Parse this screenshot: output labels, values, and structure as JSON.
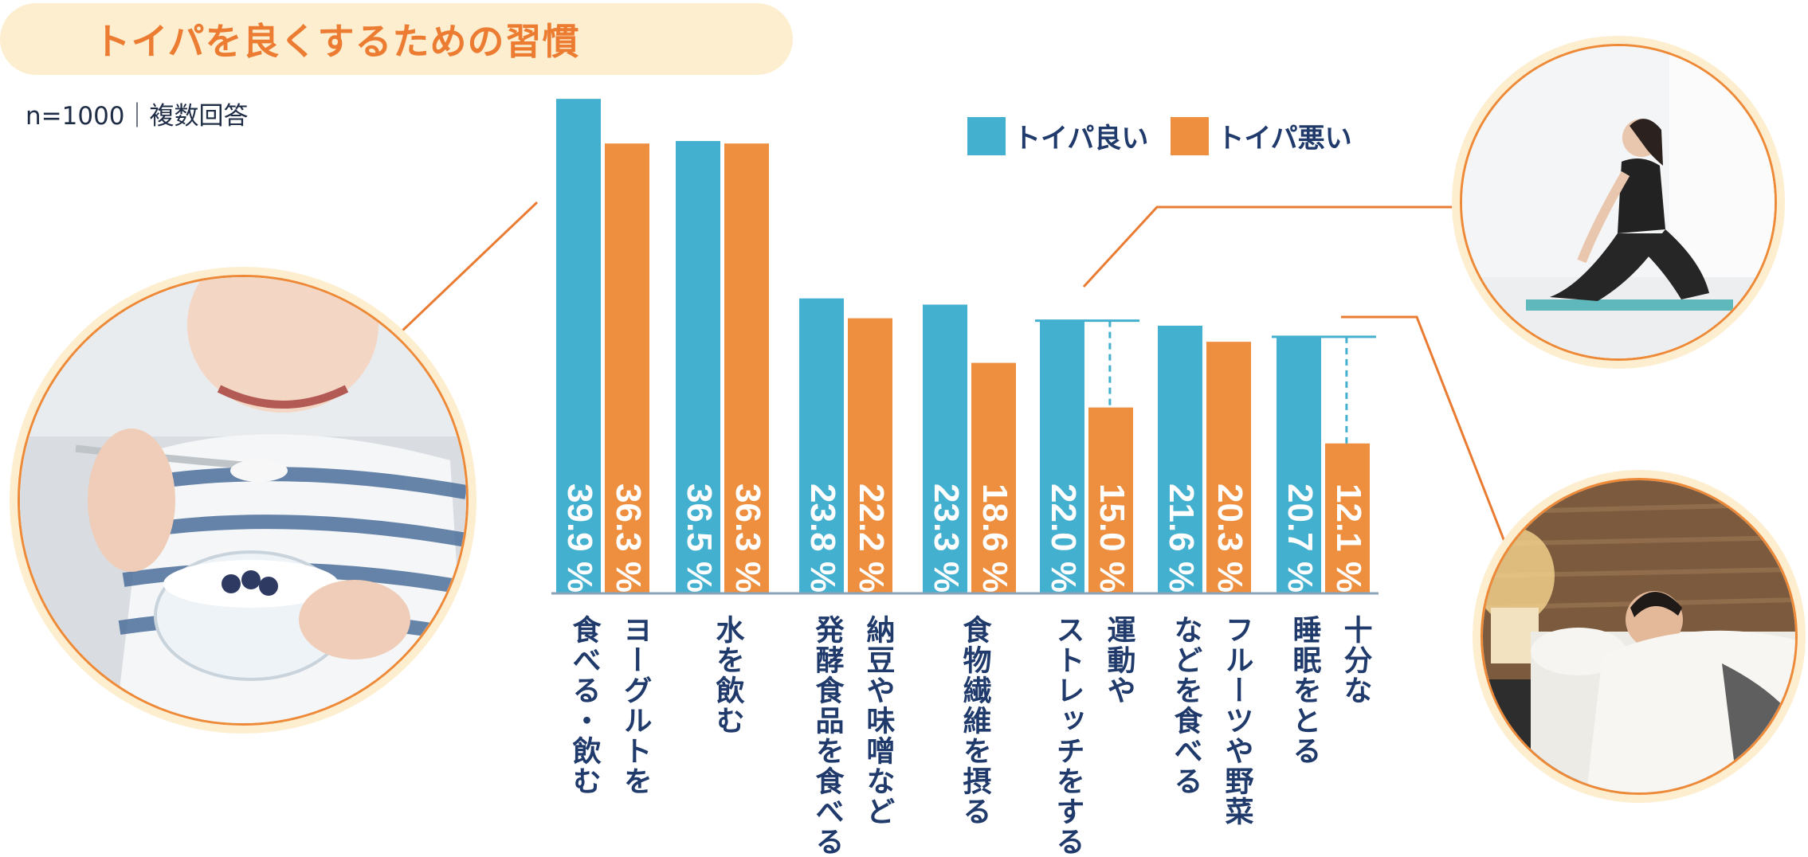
{
  "title": "トイパを良くするための習慣",
  "sample_note": "n=1000｜複数回答",
  "colors": {
    "good": "#44b0cf",
    "bad": "#ee8e3f",
    "accent": "#e97c32",
    "text": "#1f3a6b"
  },
  "chart_data": {
    "type": "bar",
    "title": "トイパを良くするための習慣",
    "ylabel": "",
    "xlabel": "",
    "ylim": [
      0,
      40
    ],
    "unit": "%",
    "categories": [
      [
        "ヨーグルトを",
        "食べる・飲む"
      ],
      [
        "水を飲む"
      ],
      [
        "納豆や味噌など",
        "発酵食品を食べる"
      ],
      [
        "食物繊維を摂る"
      ],
      [
        "運動や",
        "ストレッチをする"
      ],
      [
        "フルーツや野菜",
        "などを食べる"
      ],
      [
        "十分な",
        "睡眠をとる"
      ]
    ],
    "series": [
      {
        "name": "トイパ良い",
        "values": [
          39.9,
          36.5,
          23.8,
          23.3,
          22.0,
          21.6,
          20.7
        ]
      },
      {
        "name": "トイパ悪い",
        "values": [
          36.3,
          36.3,
          22.2,
          18.6,
          15.0,
          20.3,
          12.1
        ]
      }
    ],
    "value_labels": [
      [
        "39.9 %",
        "36.5 %",
        "23.8 %",
        "23.3 %",
        "22.0 %",
        "21.6 %",
        "20.7 %"
      ],
      [
        "36.3 %",
        "36.3 %",
        "22.2 %",
        "18.6 %",
        "15.0 %",
        "20.3 %",
        "12.1 %"
      ]
    ],
    "legend": [
      "トイパ良い",
      "トイパ悪い"
    ],
    "highlighted_gaps": [
      4,
      6
    ]
  },
  "photos": [
    {
      "name": "yogurt-photo",
      "icon": "yogurt-eating-photo"
    },
    {
      "name": "stretch-photo",
      "icon": "yoga-stretch-photo"
    },
    {
      "name": "sleep-photo",
      "icon": "sleeping-photo"
    }
  ]
}
